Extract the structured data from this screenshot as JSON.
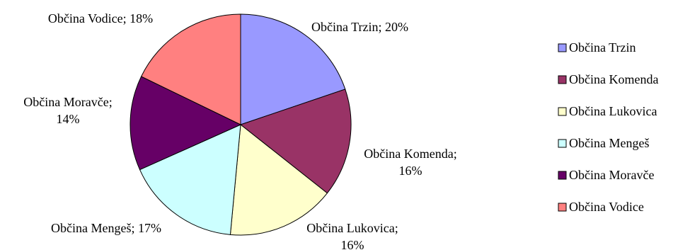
{
  "chart_data": {
    "type": "pie",
    "title": "",
    "legend_position": "right",
    "series": [
      {
        "name": "Občina Trzin",
        "value": 20,
        "label": "Občina Trzin; 20%",
        "color": "#9999ff"
      },
      {
        "name": "Občina Komenda",
        "value": 16,
        "label": "Občina Komenda; 16%",
        "color": "#993366"
      },
      {
        "name": "Občina Lukovica",
        "value": 16,
        "label": "Občina Lukovica; 16%",
        "color": "#ffffcc"
      },
      {
        "name": "Občina Mengeš",
        "value": 17,
        "label": "Občina Mengeš; 17%",
        "color": "#ccffff"
      },
      {
        "name": "Občina Moravče",
        "value": 14,
        "label": "Občina Moravče; 14%",
        "color": "#660066"
      },
      {
        "name": "Občina Vodice",
        "value": 18,
        "label": "Občina Vodice; 18%",
        "color": "#ff8080"
      }
    ]
  }
}
